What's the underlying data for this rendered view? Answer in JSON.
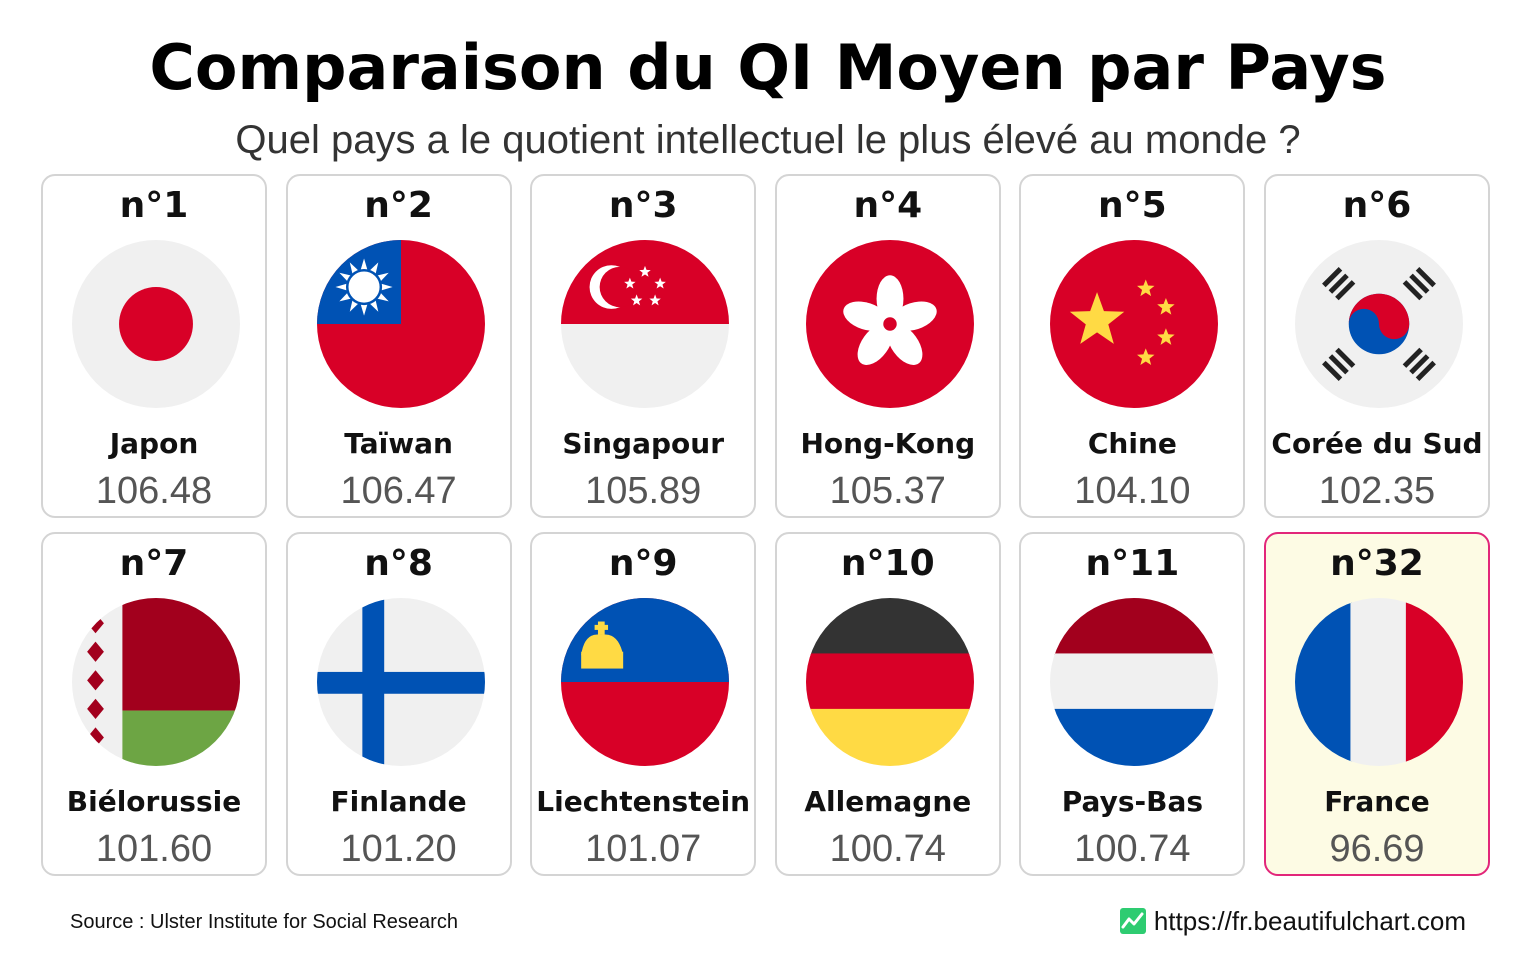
{
  "title": "Comparaison du QI Moyen par Pays",
  "subtitle": "Quel pays a le quotient intellectuel le plus élevé au monde ?",
  "source": "Source : Ulster Institute for Social Research",
  "website": "https://fr.beautifulchart.com",
  "icons": {
    "logo": "chart-logo-icon"
  },
  "colors": {
    "highlight_border": "#e2267a",
    "highlight_background": "#fdfbe4",
    "logo_green": "#2ecc71"
  },
  "chart_data": {
    "type": "table",
    "categories": [
      "Japon",
      "Taïwan",
      "Singapour",
      "Hong-Kong",
      "Chine",
      "Corée du Sud",
      "Biélorussie",
      "Finlande",
      "Liechtenstein",
      "Allemagne",
      "Pays-Bas",
      "France"
    ],
    "ranks": [
      "n°1",
      "n°2",
      "n°3",
      "n°4",
      "n°5",
      "n°6",
      "n°7",
      "n°8",
      "n°9",
      "n°10",
      "n°11",
      "n°32"
    ],
    "values": [
      106.48,
      106.47,
      105.89,
      105.37,
      104.1,
      102.35,
      101.6,
      101.2,
      101.07,
      100.74,
      100.74,
      96.69
    ],
    "value_labels": [
      "106.48",
      "106.47",
      "105.89",
      "105.37",
      "104.10",
      "102.35",
      "101.60",
      "101.20",
      "101.07",
      "100.74",
      "100.74",
      "96.69"
    ],
    "flags": [
      "japan-flag-icon",
      "taiwan-flag-icon",
      "singapore-flag-icon",
      "hong-kong-flag-icon",
      "china-flag-icon",
      "south-korea-flag-icon",
      "belarus-flag-icon",
      "finland-flag-icon",
      "liechtenstein-flag-icon",
      "germany-flag-icon",
      "netherlands-flag-icon",
      "france-flag-icon"
    ],
    "highlighted": "France"
  }
}
